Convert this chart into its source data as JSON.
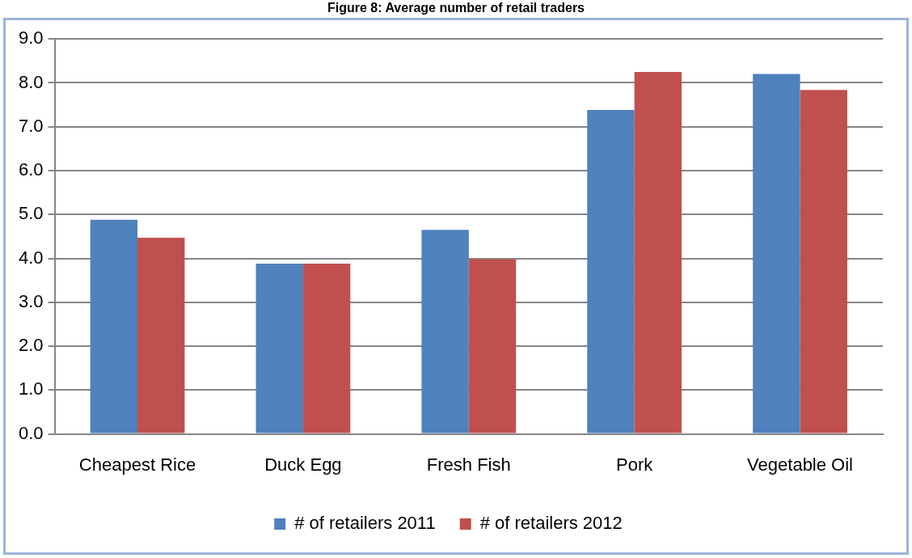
{
  "chart_data": {
    "type": "bar",
    "title": "Figure 8: Average number of retail traders",
    "categories": [
      "Cheapest Rice",
      "Duck Egg",
      "Fresh Fish",
      "Pork",
      "Vegetable Oil"
    ],
    "series": [
      {
        "name": "# of retailers 2011",
        "color": "#4f81bd",
        "values": [
          4.88,
          3.88,
          4.65,
          7.38,
          8.2
        ]
      },
      {
        "name": "# of retailers 2012",
        "color": "#c0504d",
        "values": [
          4.47,
          3.88,
          3.98,
          8.25,
          7.84
        ]
      }
    ],
    "ylim": [
      0,
      9
    ],
    "yticks": [
      {
        "value": 0,
        "label": "0.0"
      },
      {
        "value": 1,
        "label": "1.0"
      },
      {
        "value": 2,
        "label": "2.0"
      },
      {
        "value": 3,
        "label": "3.0"
      },
      {
        "value": 4,
        "label": "4.0"
      },
      {
        "value": 5,
        "label": "5.0"
      },
      {
        "value": 6,
        "label": "6.0"
      },
      {
        "value": 7,
        "label": "7.0"
      },
      {
        "value": 8,
        "label": "8.0"
      },
      {
        "value": 9,
        "label": "9.0"
      }
    ],
    "grid": "y",
    "legend": "bottom"
  }
}
